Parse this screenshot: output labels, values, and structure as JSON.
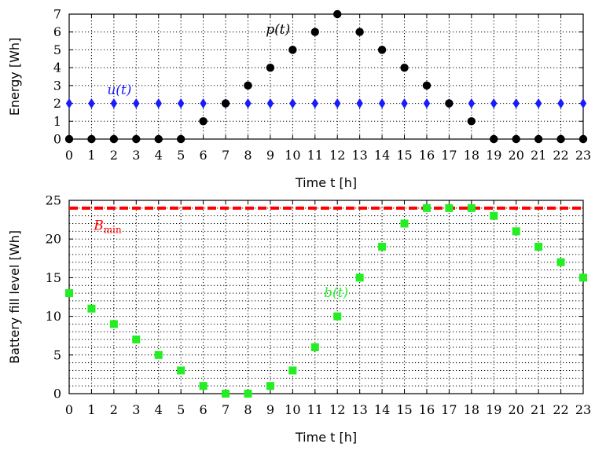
{
  "chart_data": [
    {
      "type": "scatter",
      "xlabel": "Time t [h]",
      "ylabel": "Energy [Wh]",
      "xlim": [
        0,
        23
      ],
      "ylim": [
        0,
        7
      ],
      "x_ticks": [
        0,
        1,
        2,
        3,
        4,
        5,
        6,
        7,
        8,
        9,
        10,
        11,
        12,
        13,
        14,
        15,
        16,
        17,
        18,
        19,
        20,
        21,
        22,
        23
      ],
      "y_ticks": [
        0,
        1,
        2,
        3,
        4,
        5,
        6,
        7
      ],
      "grid": "dotted",
      "series": [
        {
          "name": "u(t)",
          "marker": "diamond",
          "color": "#1a1aff",
          "x": [
            0,
            1,
            2,
            3,
            4,
            5,
            6,
            7,
            8,
            9,
            10,
            11,
            12,
            13,
            14,
            15,
            16,
            17,
            18,
            19,
            20,
            21,
            22,
            23
          ],
          "y": [
            2,
            2,
            2,
            2,
            2,
            2,
            2,
            2,
            2,
            2,
            2,
            2,
            2,
            2,
            2,
            2,
            2,
            2,
            2,
            2,
            2,
            2,
            2,
            2
          ]
        },
        {
          "name": "p(t)",
          "marker": "circle",
          "color": "#000000",
          "x": [
            0,
            1,
            2,
            3,
            4,
            5,
            6,
            7,
            8,
            9,
            10,
            11,
            12,
            13,
            14,
            15,
            16,
            17,
            18,
            19,
            20,
            21,
            22,
            23
          ],
          "y": [
            0,
            0,
            0,
            0,
            0,
            0,
            1,
            2,
            3,
            4,
            5,
            6,
            7,
            6,
            5,
            4,
            3,
            2,
            1,
            0,
            0,
            0,
            0,
            0
          ]
        }
      ],
      "annotations": [
        {
          "text": "u(t)",
          "color": "#1a1aff",
          "x": 1.7,
          "y": 2.5
        },
        {
          "text": "p(t)",
          "color": "#000000",
          "x": 8.8,
          "y": 5.9
        }
      ]
    },
    {
      "type": "scatter",
      "xlabel": "Time t [h]",
      "ylabel": "Battery fill level [Wh]",
      "xlim": [
        0,
        23
      ],
      "ylim": [
        0,
        25
      ],
      "x_ticks": [
        0,
        1,
        2,
        3,
        4,
        5,
        6,
        7,
        8,
        9,
        10,
        11,
        12,
        13,
        14,
        15,
        16,
        17,
        18,
        19,
        20,
        21,
        22,
        23
      ],
      "y_ticks": [
        0,
        5,
        10,
        15,
        20,
        25
      ],
      "grid": "dotted",
      "series": [
        {
          "name": "b(t)",
          "marker": "square",
          "color": "#22ee22",
          "x": [
            0,
            1,
            2,
            3,
            4,
            5,
            6,
            7,
            8,
            9,
            10,
            11,
            12,
            13,
            14,
            15,
            16,
            17,
            18,
            19,
            20,
            21,
            22,
            23
          ],
          "y": [
            13,
            11,
            9,
            7,
            5,
            3,
            1,
            0,
            0,
            1,
            3,
            6,
            10,
            15,
            19,
            22,
            24,
            24,
            24,
            23,
            21,
            19,
            17,
            15
          ]
        }
      ],
      "hlines": [
        {
          "name": "B_min",
          "y": 24,
          "color": "#ff0000",
          "style": "dashed"
        }
      ],
      "annotations": [
        {
          "text": "B",
          "sub": "min",
          "color": "#ff0000",
          "x": 1.1,
          "y": 21.2
        },
        {
          "text": "b(t)",
          "color": "#22ee22",
          "x": 11.4,
          "y": 12.5
        }
      ]
    }
  ]
}
